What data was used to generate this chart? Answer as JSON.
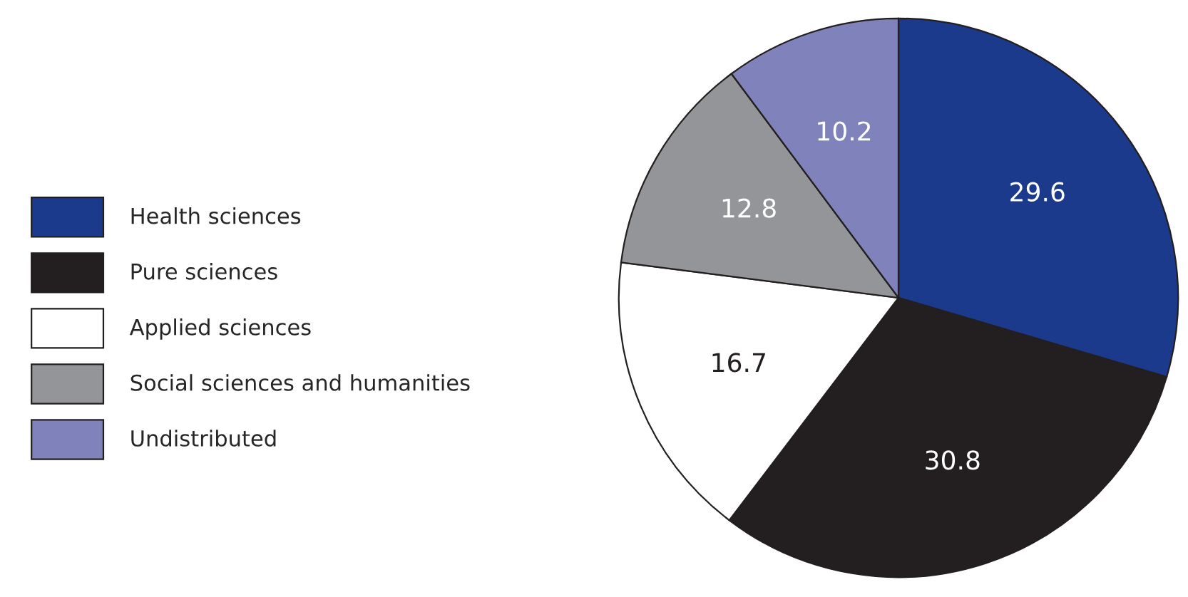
{
  "chart_data": {
    "type": "pie",
    "categories": [
      "Health sciences",
      "Pure sciences",
      "Applied sciences",
      "Social sciences and humanities",
      "Undistributed"
    ],
    "values": [
      29.6,
      30.8,
      16.7,
      12.8,
      10.2
    ],
    "colors": [
      "#1b3a8c",
      "#231f20",
      "#ffffff",
      "#939598",
      "#7f82bb"
    ],
    "data_labels": true,
    "legend": "left"
  }
}
